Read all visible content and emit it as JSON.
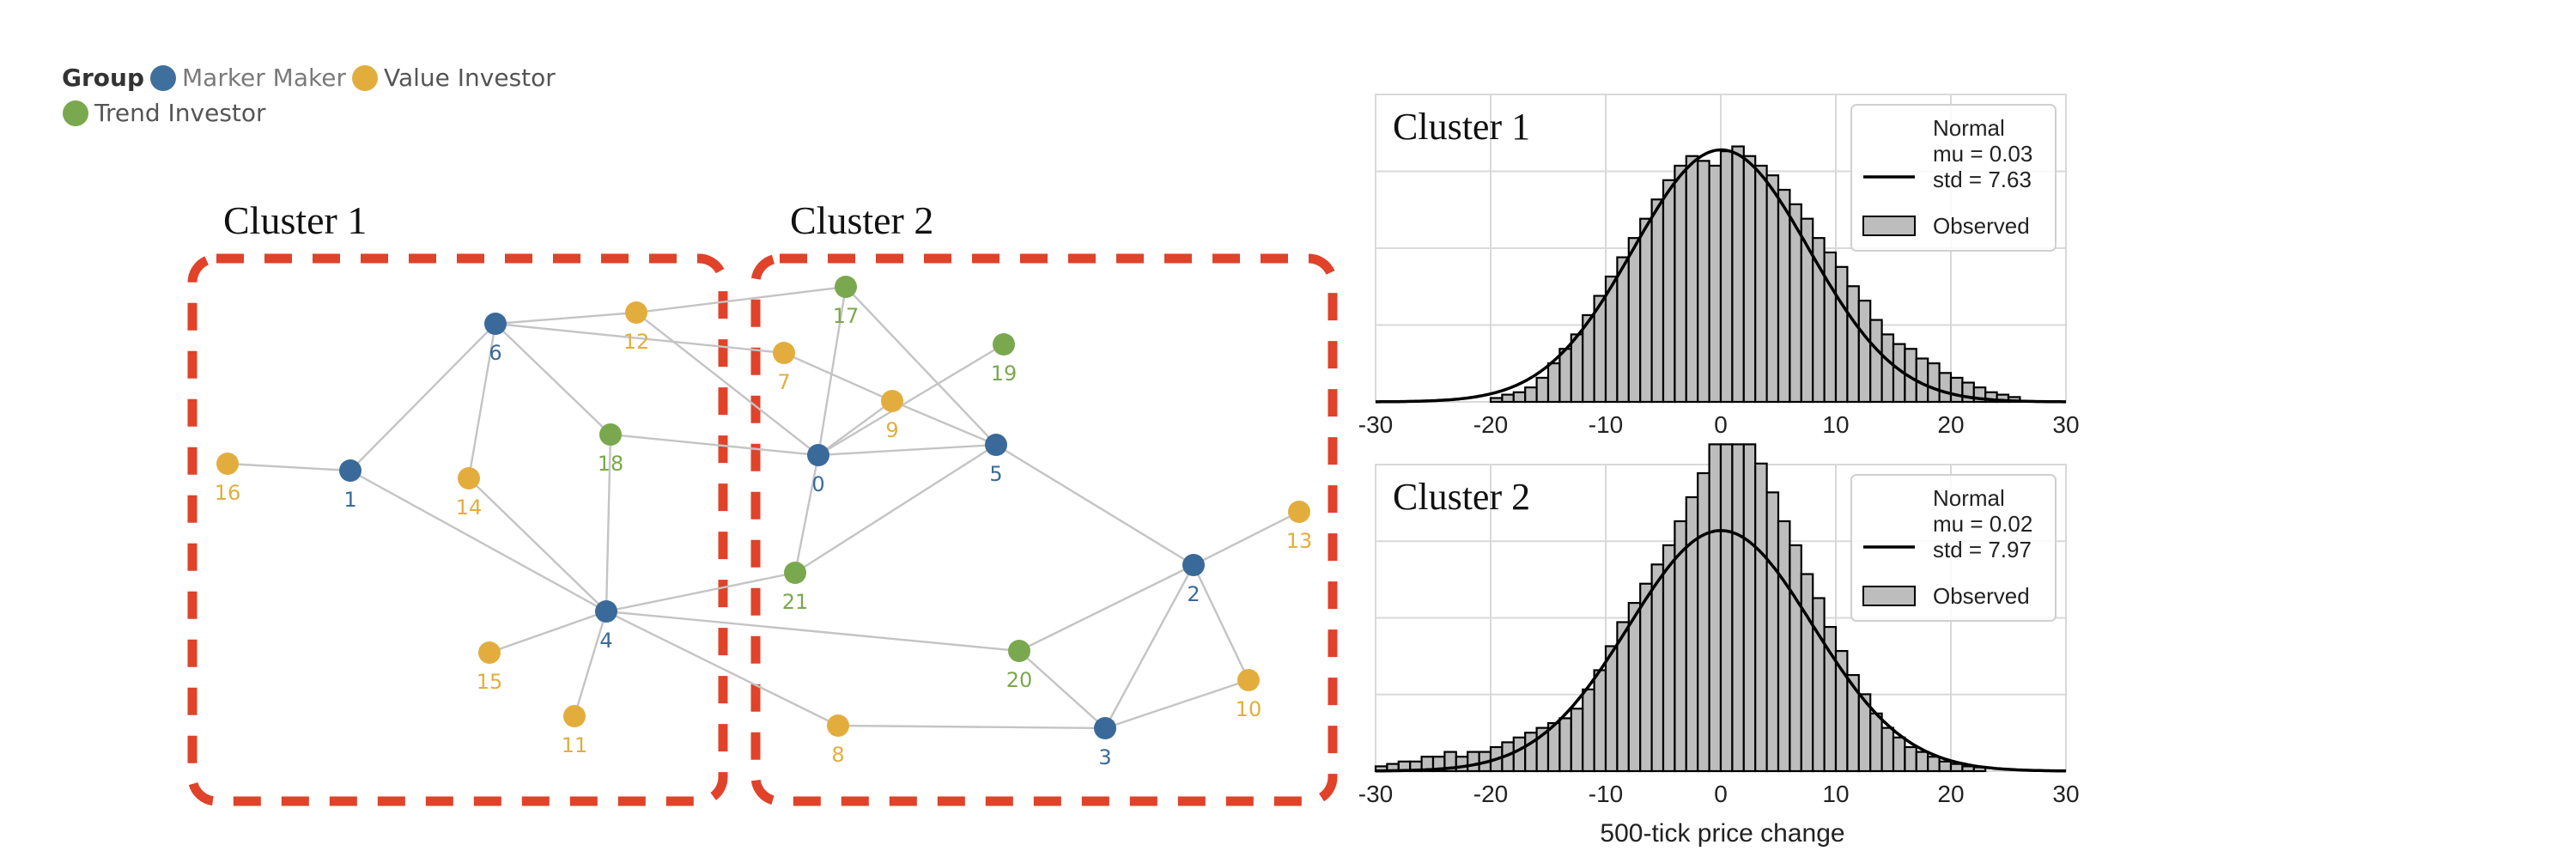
{
  "legend": {
    "title": "Group",
    "items": [
      {
        "label": "Marker Maker",
        "color": "#3f6f9c",
        "text_color": "#7a7a7a"
      },
      {
        "label": "Value Investor",
        "color": "#e3ad3e",
        "text_color": "#555555"
      },
      {
        "label": "Trend Investor",
        "color": "#7aa84e",
        "text_color": "#555555"
      }
    ]
  },
  "clusters": [
    {
      "title": "Cluster 1",
      "border_color": "#e0422a"
    },
    {
      "title": "Cluster 2",
      "border_color": "#e0422a"
    }
  ],
  "network": {
    "group_colors": {
      "marker_maker": "#3a6a99",
      "value_investor": "#e3ad3e",
      "trend_investor": "#7aa84e"
    },
    "nodes": [
      {
        "id": "0",
        "group": "marker_maker"
      },
      {
        "id": "1",
        "group": "marker_maker"
      },
      {
        "id": "2",
        "group": "marker_maker"
      },
      {
        "id": "3",
        "group": "marker_maker"
      },
      {
        "id": "4",
        "group": "marker_maker"
      },
      {
        "id": "5",
        "group": "marker_maker"
      },
      {
        "id": "6",
        "group": "marker_maker"
      },
      {
        "id": "7",
        "group": "value_investor"
      },
      {
        "id": "8",
        "group": "value_investor"
      },
      {
        "id": "9",
        "group": "value_investor"
      },
      {
        "id": "10",
        "group": "value_investor"
      },
      {
        "id": "11",
        "group": "value_investor"
      },
      {
        "id": "12",
        "group": "value_investor"
      },
      {
        "id": "13",
        "group": "value_investor"
      },
      {
        "id": "14",
        "group": "value_investor"
      },
      {
        "id": "15",
        "group": "value_investor"
      },
      {
        "id": "16",
        "group": "value_investor"
      },
      {
        "id": "17",
        "group": "trend_investor"
      },
      {
        "id": "18",
        "group": "trend_investor"
      },
      {
        "id": "19",
        "group": "trend_investor"
      },
      {
        "id": "20",
        "group": "trend_investor"
      },
      {
        "id": "21",
        "group": "trend_investor"
      }
    ],
    "edges": [
      [
        "16",
        "1"
      ],
      [
        "1",
        "6"
      ],
      [
        "1",
        "4"
      ],
      [
        "6",
        "12"
      ],
      [
        "6",
        "7"
      ],
      [
        "6",
        "18"
      ],
      [
        "6",
        "14"
      ],
      [
        "12",
        "17"
      ],
      [
        "12",
        "0"
      ],
      [
        "18",
        "0"
      ],
      [
        "18",
        "4"
      ],
      [
        "14",
        "4"
      ],
      [
        "4",
        "15"
      ],
      [
        "4",
        "11"
      ],
      [
        "4",
        "21"
      ],
      [
        "4",
        "20"
      ],
      [
        "4",
        "8"
      ],
      [
        "7",
        "9"
      ],
      [
        "9",
        "0"
      ],
      [
        "9",
        "5"
      ],
      [
        "17",
        "0"
      ],
      [
        "17",
        "5"
      ],
      [
        "19",
        "0"
      ],
      [
        "0",
        "5"
      ],
      [
        "0",
        "21"
      ],
      [
        "21",
        "5"
      ],
      [
        "5",
        "2"
      ],
      [
        "2",
        "13"
      ],
      [
        "2",
        "20"
      ],
      [
        "2",
        "3"
      ],
      [
        "2",
        "10"
      ],
      [
        "20",
        "3"
      ],
      [
        "8",
        "3"
      ],
      [
        "10",
        "3"
      ]
    ]
  },
  "histograms": {
    "xlabel": "500-tick price change",
    "colors": {
      "bar_fill": "#bdbdbd",
      "bar_edge": "#000000",
      "grid": "#d9d9d9",
      "curve": "#000000"
    }
  },
  "chart_data": [
    {
      "type": "bar",
      "title": "Cluster 1",
      "xlabel": "",
      "xlim": [
        -30,
        30
      ],
      "xticks": [
        "-30",
        "-20",
        "-10",
        "0",
        "10",
        "20",
        "30"
      ],
      "grid": true,
      "legend": {
        "placement": "top-right",
        "curve_label": "Normal\nmu = 0.03\nstd = 7.63",
        "bar_label": "Observed"
      },
      "normal": {
        "mu": 0.03,
        "std": 7.63
      },
      "bin_width": 1,
      "bins_start": -30,
      "density": [
        0,
        0,
        0,
        0,
        0,
        0,
        0,
        0,
        0,
        0,
        0.0008,
        0.0015,
        0.002,
        0.003,
        0.005,
        0.008,
        0.011,
        0.014,
        0.018,
        0.022,
        0.026,
        0.03,
        0.034,
        0.038,
        0.042,
        0.046,
        0.049,
        0.051,
        0.05,
        0.049,
        0.052,
        0.053,
        0.051,
        0.049,
        0.047,
        0.044,
        0.041,
        0.038,
        0.034,
        0.031,
        0.028,
        0.024,
        0.021,
        0.017,
        0.014,
        0.012,
        0.011,
        0.009,
        0.008,
        0.006,
        0.005,
        0.004,
        0.003,
        0.002,
        0.0015,
        0.001,
        0,
        0,
        0,
        0
      ]
    },
    {
      "type": "bar",
      "title": "Cluster 2",
      "xlabel": "500-tick price change",
      "xlim": [
        -30,
        30
      ],
      "xticks": [
        "-30",
        "-20",
        "-10",
        "0",
        "10",
        "20",
        "30"
      ],
      "grid": true,
      "legend": {
        "placement": "top-right",
        "curve_label": "Normal\nmu = 0.02\nstd = 7.97",
        "bar_label": "Observed"
      },
      "normal": {
        "mu": 0.02,
        "std": 7.97
      },
      "bin_width": 1,
      "bins_start": -30,
      "density": [
        0.001,
        0.0015,
        0.002,
        0.002,
        0.003,
        0.003,
        0.004,
        0.003,
        0.004,
        0.004,
        0.005,
        0.006,
        0.007,
        0.008,
        0.009,
        0.01,
        0.011,
        0.013,
        0.017,
        0.021,
        0.026,
        0.031,
        0.035,
        0.039,
        0.043,
        0.047,
        0.052,
        0.057,
        0.062,
        0.068,
        0.068,
        0.068,
        0.068,
        0.064,
        0.058,
        0.052,
        0.047,
        0.041,
        0.036,
        0.03,
        0.025,
        0.02,
        0.016,
        0.012,
        0.009,
        0.007,
        0.005,
        0.004,
        0.003,
        0.002,
        0.0015,
        0.001,
        0.0008,
        0,
        0,
        0,
        0,
        0,
        0,
        0
      ]
    }
  ]
}
